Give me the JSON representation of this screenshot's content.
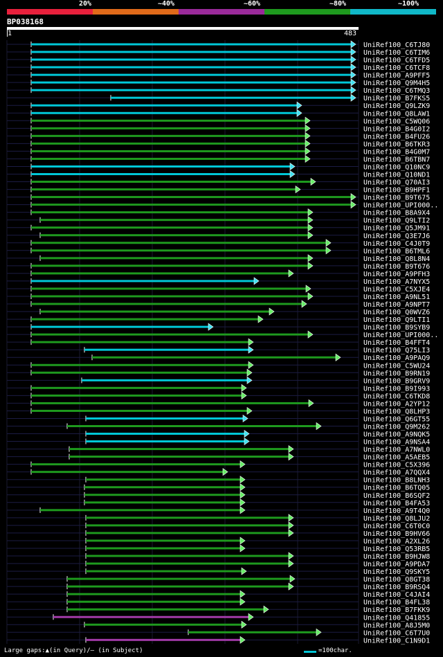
{
  "legend": {
    "labels": [
      "20%",
      "~40%",
      "~60%",
      "~80%",
      "~100%"
    ],
    "colors": [
      "#e8203c",
      "#e06a1a",
      "#9a2a9a",
      "#1e9a1e",
      "#10b8c8"
    ]
  },
  "query": {
    "id": "BP038168",
    "start": "1",
    "end": "483"
  },
  "footer": {
    "gaps_text": "Large gaps:▲(in Query)/– (in Subject)",
    "scale_text": "=100char."
  },
  "hits": [
    {
      "name": "UniRef100_C6TJ80",
      "color": "cyan"
    },
    {
      "name": "UniRef100_C6TIM6",
      "color": "cyan"
    },
    {
      "name": "UniRef100_C6TFD5",
      "color": "cyan"
    },
    {
      "name": "UniRef100_C6TCF8",
      "color": "cyan"
    },
    {
      "name": "UniRef100_A9PFF5",
      "color": "cyan"
    },
    {
      "name": "UniRef100_Q9M4H5",
      "color": "cyan"
    },
    {
      "name": "UniRef100_C6TMQ3",
      "color": "cyan"
    },
    {
      "name": "UniRef100_B7FKS5",
      "color": "cyan"
    },
    {
      "name": "UniRef100_Q9LZK9",
      "color": "cyan"
    },
    {
      "name": "UniRef100_Q8LAW1",
      "color": "cyan"
    },
    {
      "name": "UniRef100_C5WQ06",
      "color": "green"
    },
    {
      "name": "UniRef100_B4G0I2",
      "color": "green"
    },
    {
      "name": "UniRef100_B4FU26",
      "color": "green"
    },
    {
      "name": "UniRef100_B6TKR3",
      "color": "green"
    },
    {
      "name": "UniRef100_B4G0M7",
      "color": "green"
    },
    {
      "name": "UniRef100_B6TBN7",
      "color": "green"
    },
    {
      "name": "UniRef100_Q10NC9",
      "color": "cyan"
    },
    {
      "name": "UniRef100_Q10ND1",
      "color": "cyan"
    },
    {
      "name": "UniRef100_Q70AI3",
      "color": "green"
    },
    {
      "name": "UniRef100_B9HPF1",
      "color": "green"
    },
    {
      "name": "UniRef100_B9T675",
      "color": "green"
    },
    {
      "name": "UniRef100_UPI000..",
      "color": "green"
    },
    {
      "name": "UniRef100_B8A9X4",
      "color": "green"
    },
    {
      "name": "UniRef100_Q9LTI2",
      "color": "green"
    },
    {
      "name": "UniRef100_Q5JM91",
      "color": "green"
    },
    {
      "name": "UniRef100_Q3E7J6",
      "color": "green"
    },
    {
      "name": "UniRef100_C4J0T9",
      "color": "green"
    },
    {
      "name": "UniRef100_B6TML6",
      "color": "green"
    },
    {
      "name": "UniRef100_Q8L8N4",
      "color": "green"
    },
    {
      "name": "UniRef100_B9T676",
      "color": "green"
    },
    {
      "name": "UniRef100_A9PFH3",
      "color": "green"
    },
    {
      "name": "UniRef100_A7NYX5",
      "color": "cyan"
    },
    {
      "name": "UniRef100_C5XJE4",
      "color": "green"
    },
    {
      "name": "UniRef100_A9NL51",
      "color": "green"
    },
    {
      "name": "UniRef100_A9NPT7",
      "color": "green"
    },
    {
      "name": "UniRef100_Q0WVZ6",
      "color": "green"
    },
    {
      "name": "UniRef100_Q9LTI1",
      "color": "green"
    },
    {
      "name": "UniRef100_B9SYB9",
      "color": "cyan"
    },
    {
      "name": "UniRef100_UPI000..",
      "color": "green"
    },
    {
      "name": "UniRef100_B4FFT4",
      "color": "green"
    },
    {
      "name": "UniRef100_Q75LI3",
      "color": "cyan"
    },
    {
      "name": "UniRef100_A9PAQ9",
      "color": "green"
    },
    {
      "name": "UniRef100_C5WU24",
      "color": "green"
    },
    {
      "name": "UniRef100_B9RN19",
      "color": "green"
    },
    {
      "name": "UniRef100_B9GRV9",
      "color": "cyan"
    },
    {
      "name": "UniRef100_B9I993",
      "color": "green"
    },
    {
      "name": "UniRef100_C6TKD8",
      "color": "green"
    },
    {
      "name": "UniRef100_A2YP12",
      "color": "green"
    },
    {
      "name": "UniRef100_Q8LHP3",
      "color": "green"
    },
    {
      "name": "UniRef100_Q6GT55",
      "color": "cyan"
    },
    {
      "name": "UniRef100_Q9M262",
      "color": "green"
    },
    {
      "name": "UniRef100_A9NQK5",
      "color": "cyan"
    },
    {
      "name": "UniRef100_A9NSA4",
      "color": "cyan"
    },
    {
      "name": "UniRef100_A7NWL0",
      "color": "green"
    },
    {
      "name": "UniRef100_A5AEB5",
      "color": "green"
    },
    {
      "name": "UniRef100_C5X396",
      "color": "green"
    },
    {
      "name": "UniRef100_A7QQX4",
      "color": "green"
    },
    {
      "name": "UniRef100_B8LNH3",
      "color": "green"
    },
    {
      "name": "UniRef100_B6TQ05",
      "color": "green"
    },
    {
      "name": "UniRef100_B6SQF2",
      "color": "green"
    },
    {
      "name": "UniRef100_B4FA53",
      "color": "green"
    },
    {
      "name": "UniRef100_A9T4Q0",
      "color": "green"
    },
    {
      "name": "UniRef100_Q8LJU2",
      "color": "green"
    },
    {
      "name": "UniRef100_C6T0C0",
      "color": "green"
    },
    {
      "name": "UniRef100_B9HV66",
      "color": "green"
    },
    {
      "name": "UniRef100_A2XL26",
      "color": "green"
    },
    {
      "name": "UniRef100_Q53RB5",
      "color": "green"
    },
    {
      "name": "UniRef100_B9HJW8",
      "color": "green"
    },
    {
      "name": "UniRef100_A9PDA7",
      "color": "green"
    },
    {
      "name": "UniRef100_Q9SKY5",
      "color": "green"
    },
    {
      "name": "UniRef100_Q8GT38",
      "color": "green"
    },
    {
      "name": "UniRef100_B9RSQ4",
      "color": "green"
    },
    {
      "name": "UniRef100_C4JAI4",
      "color": "green"
    },
    {
      "name": "UniRef100_B4FL38",
      "color": "green"
    },
    {
      "name": "UniRef100_B7FKK9",
      "color": "green"
    },
    {
      "name": "UniRef100_Q41855",
      "color": "purple"
    },
    {
      "name": "UniRef100_A8J5M0",
      "color": "green"
    },
    {
      "name": "UniRef100_C6T7U0",
      "color": "green"
    },
    {
      "name": "UniRef100_C1N9D1",
      "color": "purple"
    }
  ]
}
